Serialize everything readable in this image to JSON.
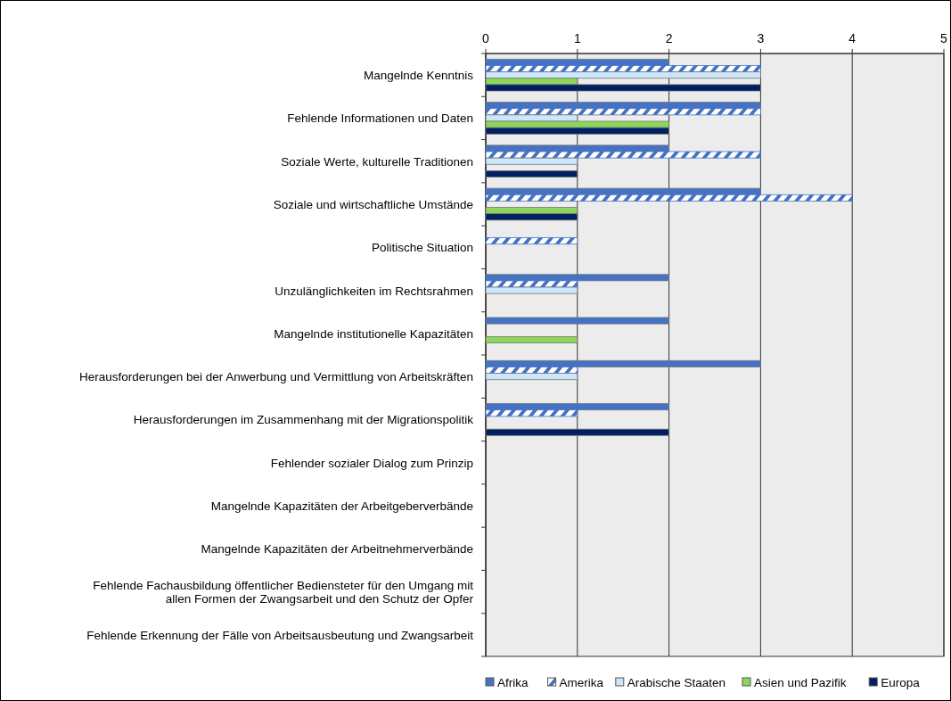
{
  "chart_data": {
    "type": "bar",
    "orientation": "horizontal",
    "categories": [
      "Mangelnde Kenntnis",
      "Fehlende Informationen und Daten",
      "Soziale Werte, kulturelle Traditionen",
      "Soziale und wirtschaftliche Umstände",
      "Politische Situation",
      "Unzulänglichkeiten im Rechtsrahmen",
      "Mangelnde institutionelle Kapazitäten",
      "Herausforderungen bei der Anwerbung und Vermittlung von Arbeitskräften",
      "Herausforderungen im Zusammenhang mit der Migrationspolitik",
      "Fehlender sozialer Dialog zum Prinzip",
      "Mangelnde Kapazitäten der Arbeitgeberverbände",
      "Mangelnde Kapazitäten der Arbeitnehmerverbände",
      "Fehlende Fachausbildung öffentlicher Bediensteter für den Umgang mit allen Formen der Zwangsarbeit und den Schutz der Opfer",
      "Fehlende Erkennung der Fälle von Arbeitsausbeutung und Zwangsarbeit"
    ],
    "series": [
      {
        "name": "Afrika",
        "color": "#4472c4",
        "values": [
          2,
          3,
          2,
          3,
          0,
          2,
          2,
          3,
          2,
          0,
          0,
          0,
          0,
          0
        ]
      },
      {
        "name": "Amerika",
        "color": "#4472c4",
        "values": [
          3,
          3,
          3,
          4,
          1,
          1,
          0,
          1,
          1,
          0,
          0,
          0,
          0,
          0
        ]
      },
      {
        "name": "Arabische Staaten",
        "color": "#cce6fa",
        "values": [
          3,
          1,
          1,
          0,
          0,
          1,
          0,
          1,
          0,
          0,
          0,
          0,
          0,
          0
        ]
      },
      {
        "name": "Asien und Pazifik",
        "color": "#8cd65a",
        "values": [
          1,
          2,
          0,
          1,
          0,
          0,
          1,
          0,
          0,
          0,
          0,
          0,
          0,
          0
        ]
      },
      {
        "name": "Europa",
        "color": "#001f60",
        "values": [
          3,
          2,
          1,
          1,
          0,
          0,
          0,
          0,
          2,
          0,
          0,
          0,
          0,
          0
        ]
      }
    ],
    "xlim": [
      0,
      5
    ],
    "xticks": [
      0,
      1,
      2,
      3,
      4,
      5
    ],
    "grid": "x",
    "legend": "bottom"
  }
}
